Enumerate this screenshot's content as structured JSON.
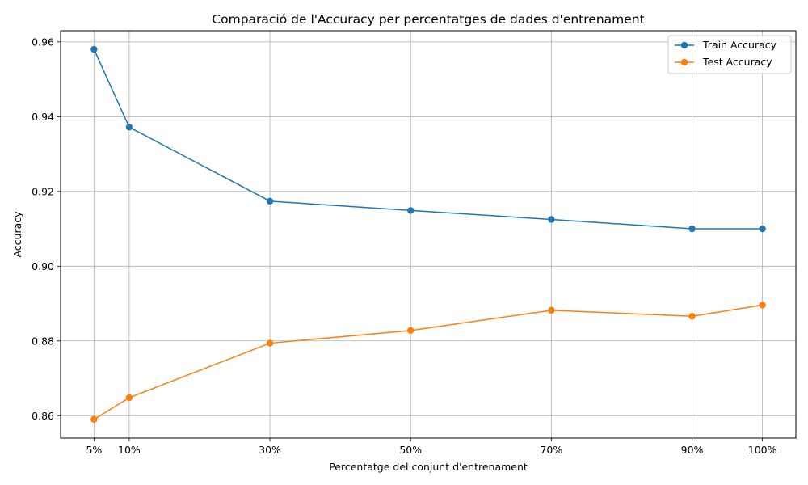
{
  "chart_data": {
    "type": "line",
    "title": "Comparació de l'Accuracy per percentatges de dades d'entrenament",
    "xlabel": "Percentatge del conjunt d'entrenament",
    "ylabel": "Accuracy",
    "x": [
      5,
      10,
      30,
      50,
      70,
      90,
      100
    ],
    "x_tick_labels": [
      "5%",
      "10%",
      "30%",
      "50%",
      "70%",
      "90%",
      "100%"
    ],
    "yticks": [
      0.86,
      0.88,
      0.9,
      0.92,
      0.94,
      0.96
    ],
    "ytick_labels": [
      "0.86",
      "0.88",
      "0.90",
      "0.92",
      "0.94",
      "0.96"
    ],
    "xlim": [
      0.25,
      104.75
    ],
    "ylim": [
      0.854,
      0.963
    ],
    "grid": true,
    "legend_position": "top-right",
    "series": [
      {
        "name": "Train Accuracy",
        "color": "#1f77b4",
        "values": [
          0.958,
          0.9372,
          0.9174,
          0.9149,
          0.9125,
          0.91,
          0.91
        ]
      },
      {
        "name": "Test Accuracy",
        "color": "#ff7f0e",
        "values": [
          0.859,
          0.8648,
          0.8794,
          0.8828,
          0.8882,
          0.8866,
          0.8896
        ]
      }
    ]
  }
}
